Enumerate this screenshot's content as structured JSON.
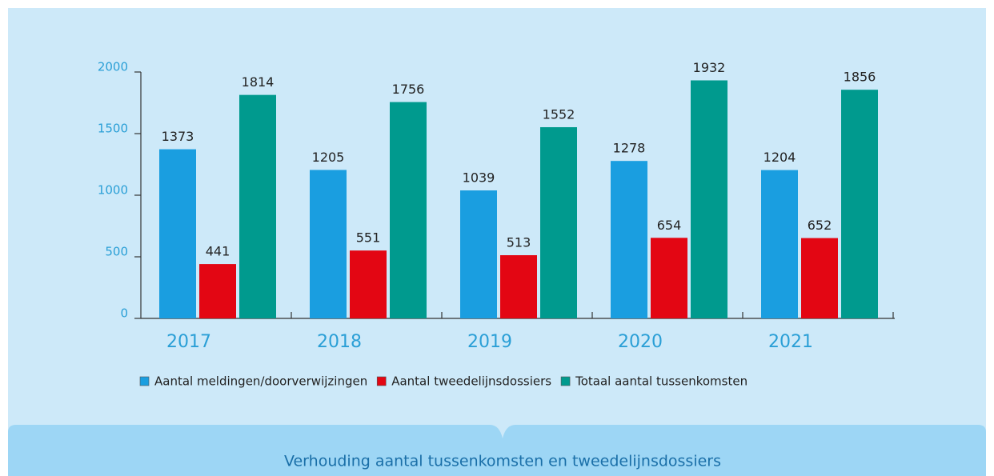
{
  "chart_data": {
    "type": "bar",
    "categories": [
      "2017",
      "2018",
      "2019",
      "2020",
      "2021"
    ],
    "series": [
      {
        "name": "Aantal meldingen/doorverwijzingen",
        "color": "#1a9ee0",
        "values": [
          1373,
          1205,
          1039,
          1278,
          1204
        ]
      },
      {
        "name": "Aantal tweedelijnsdossiers",
        "color": "#e30613",
        "values": [
          441,
          551,
          513,
          654,
          652
        ]
      },
      {
        "name": "Totaal aantal tussenkomsten",
        "color": "#009a8e",
        "values": [
          1814,
          1756,
          1552,
          1932,
          1856
        ]
      }
    ],
    "ylim": [
      0,
      2000
    ],
    "yticks": [
      0,
      500,
      1000,
      1500,
      2000
    ],
    "caption": "Verhouding aantal tussenkomsten en tweedelijnsdossiers"
  }
}
